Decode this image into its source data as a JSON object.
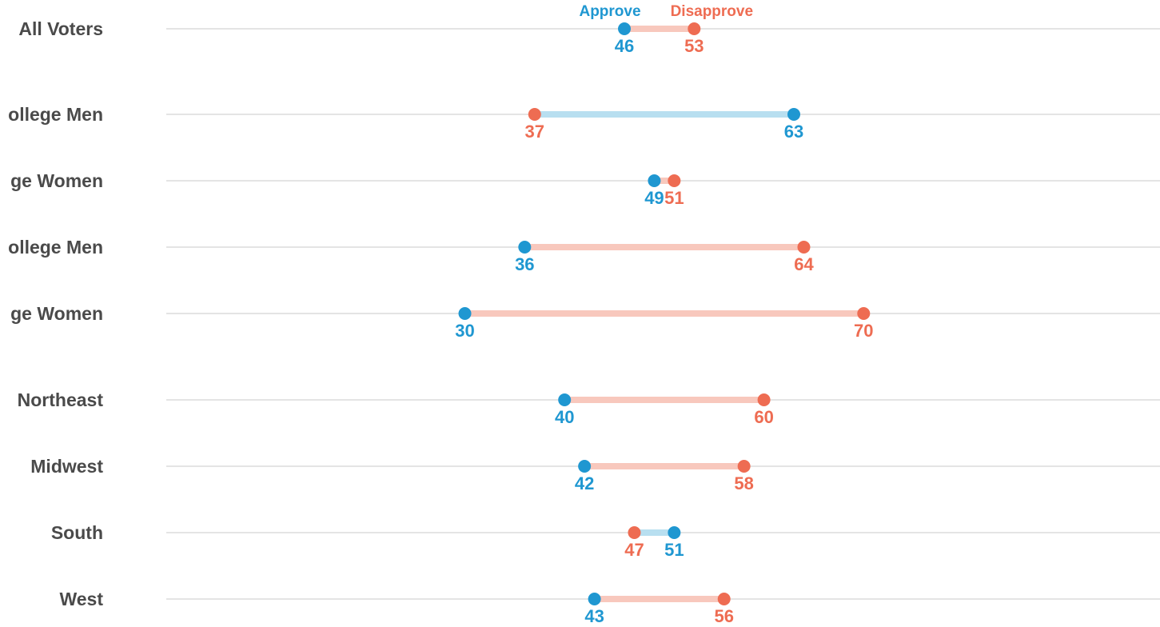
{
  "colors": {
    "approve": "#1f97d1",
    "disapprove": "#ee6c52",
    "approve_bar": "#b8dff0",
    "disapprove_bar": "#f8c8bd",
    "row_line": "#c8c8c8",
    "label_text": "#4a4a4a"
  },
  "chart_data": {
    "type": "dumbbell",
    "legend": {
      "approve_label": "Approve",
      "disapprove_label": "Disapprove",
      "placement": "top"
    },
    "rows": [
      {
        "label": "All Voters",
        "approve": 46,
        "disapprove": 53
      },
      {
        "label": "ollege Men",
        "approve": 63,
        "disapprove": 37
      },
      {
        "label": "ge Women",
        "approve": 49,
        "disapprove": 51
      },
      {
        "label": "ollege Men",
        "approve": 36,
        "disapprove": 64
      },
      {
        "label": "ge Women",
        "approve": 30,
        "disapprove": 70
      },
      {
        "label": "Northeast",
        "approve": 40,
        "disapprove": 60
      },
      {
        "label": "Midwest",
        "approve": 42,
        "disapprove": 58
      },
      {
        "label": "South",
        "approve": 51,
        "disapprove": 47
      },
      {
        "label": "West",
        "approve": 43,
        "disapprove": 56
      }
    ]
  }
}
